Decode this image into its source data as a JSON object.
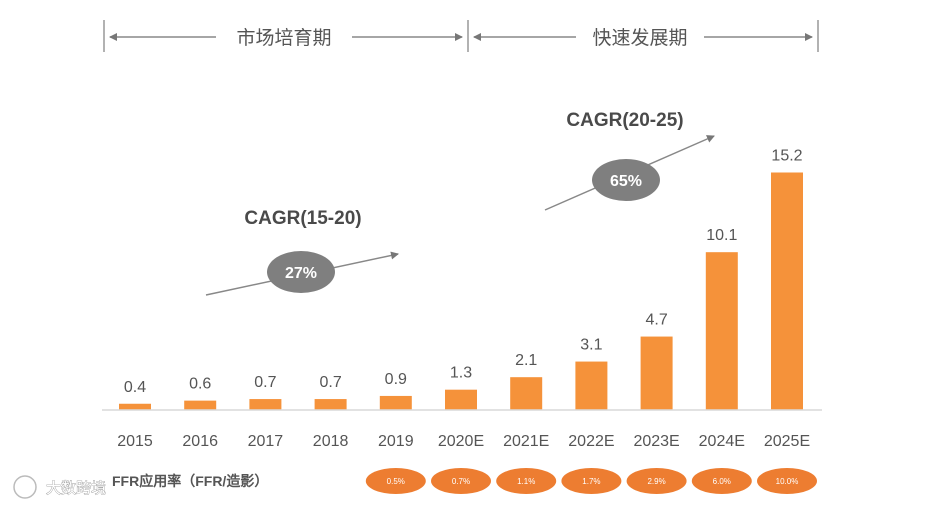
{
  "chart_data": {
    "type": "bar",
    "categories": [
      "2015",
      "2016",
      "2017",
      "2018",
      "2019",
      "2020E",
      "2021E",
      "2022E",
      "2023E",
      "2024E",
      "2025E"
    ],
    "values": [
      0.4,
      0.6,
      0.7,
      0.7,
      0.9,
      1.3,
      2.1,
      3.1,
      4.7,
      10.1,
      15.2
    ],
    "value_labels": [
      "0.4",
      "0.6",
      "0.7",
      "0.7",
      "0.9",
      "1.3",
      "2.1",
      "3.1",
      "4.7",
      "10.1",
      "15.2"
    ],
    "ylim": [
      0,
      16
    ],
    "grid": false,
    "bar_color": "#f5923a",
    "phases": [
      {
        "label": "市场培育期",
        "from": "2015",
        "to": "2019"
      },
      {
        "label": "快速发展期",
        "from": "2020E",
        "to": "2025E"
      }
    ],
    "annotations": [
      {
        "label": "CAGR(15-20)",
        "value": "27%"
      },
      {
        "label": "CAGR(20-25)",
        "value": "65%"
      }
    ],
    "ffr": {
      "title": "FFR应用率（FFR/造影）",
      "categories": [
        "2019",
        "2020E",
        "2021E",
        "2022E",
        "2023E",
        "2024E",
        "2025E"
      ],
      "values": [
        "0.5%",
        "0.7%",
        "1.1%",
        "1.7%",
        "2.9%",
        "6.0%",
        "10.0%"
      ],
      "color": "#ed7d31"
    }
  },
  "watermark": "大数跨境"
}
